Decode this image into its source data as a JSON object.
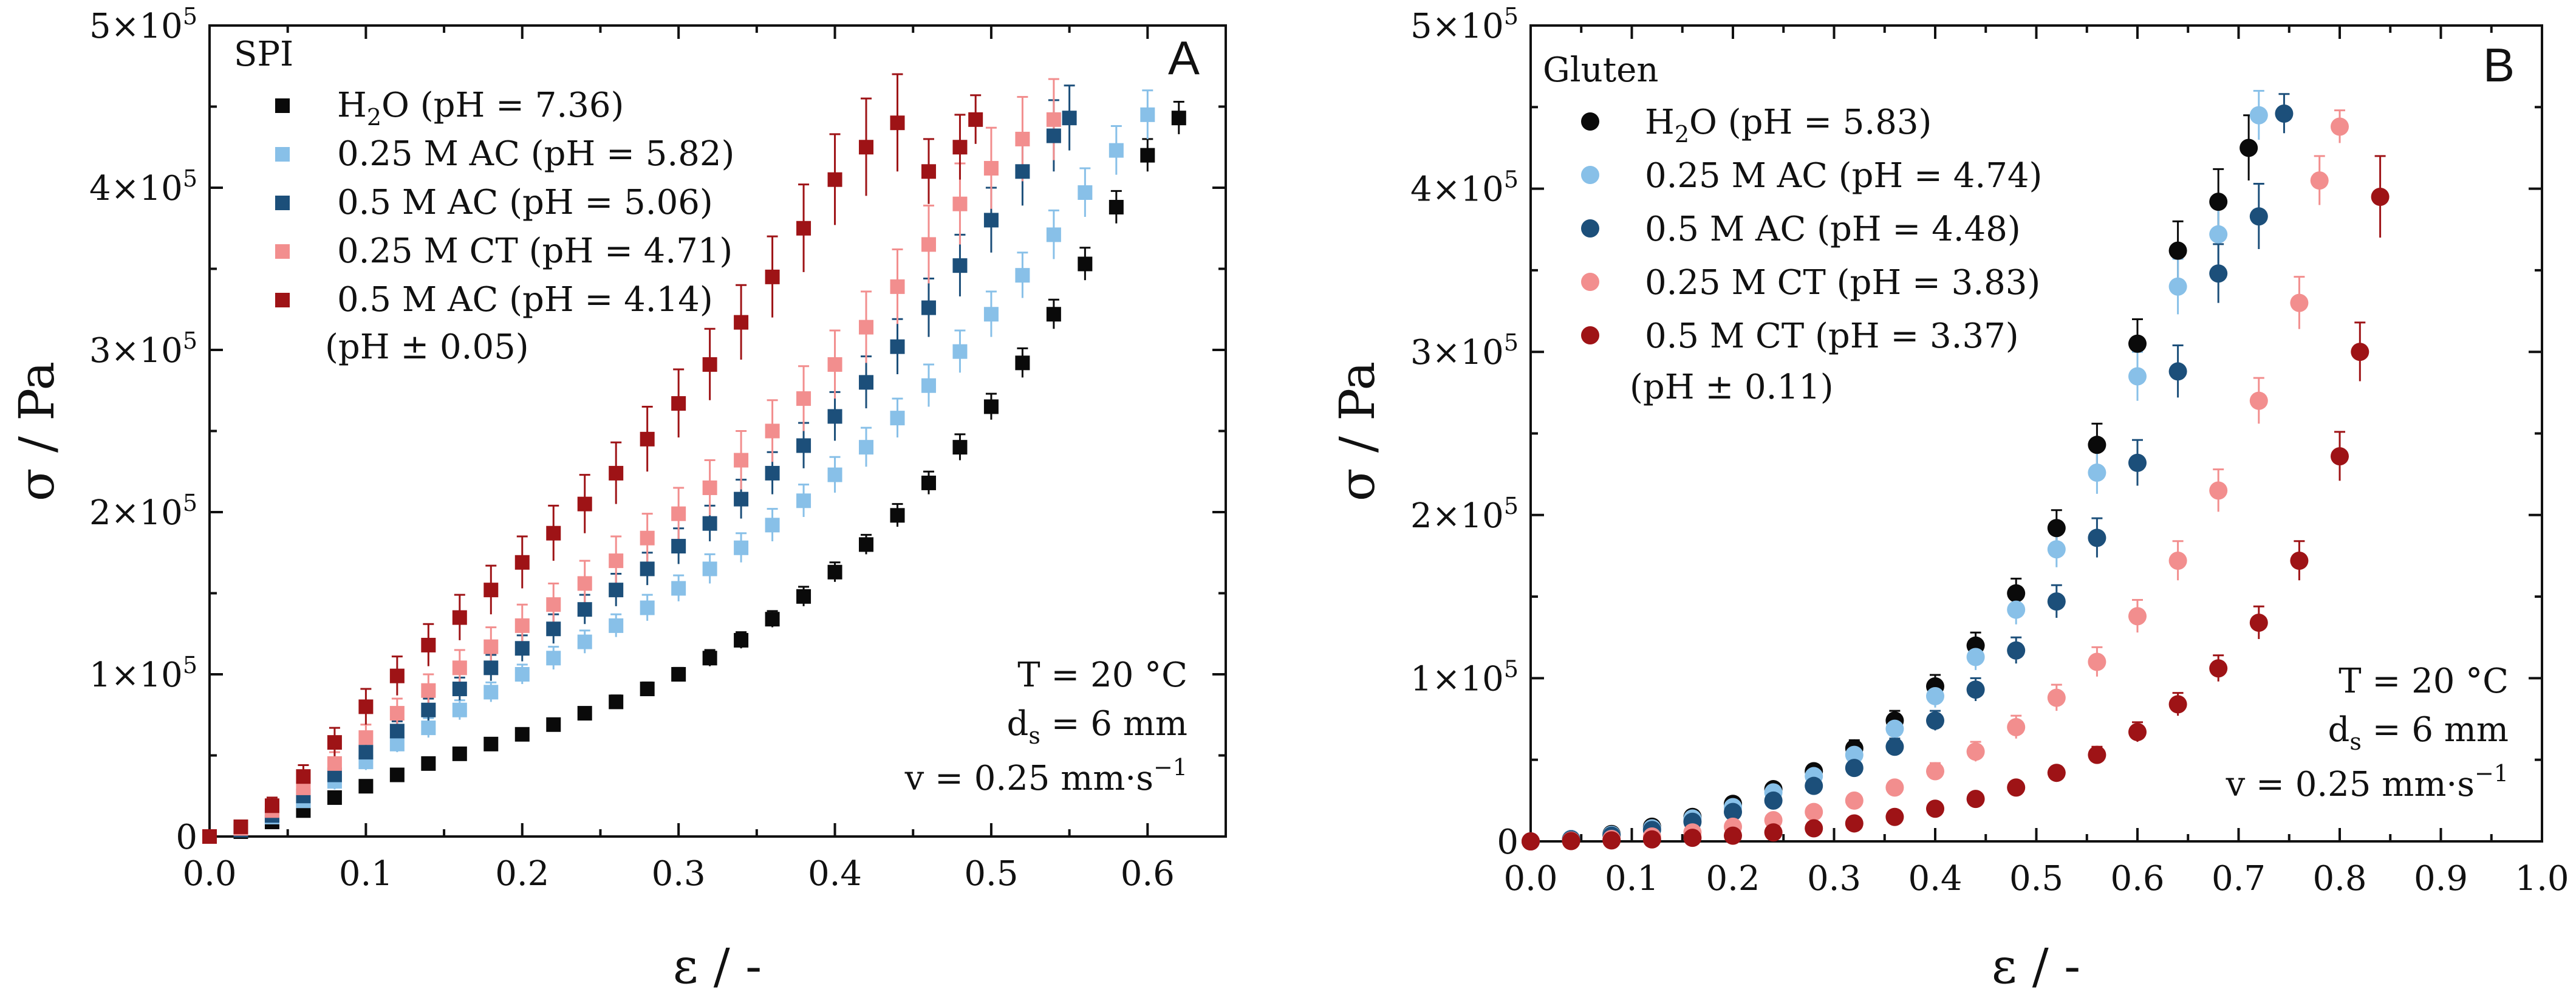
{
  "chart_data": [
    {
      "type": "scatter",
      "panel_label": "A",
      "title": "SPI",
      "xlabel": "ε / -",
      "ylabel": "σ / Pa",
      "xlim": [
        0,
        0.65
      ],
      "ylim": [
        0,
        500000
      ],
      "xticks": [
        "0.0",
        "0.1",
        "0.2",
        "0.3",
        "0.4",
        "0.5",
        "0.6"
      ],
      "xtick_values": [
        0,
        0.1,
        0.2,
        0.3,
        0.4,
        0.5,
        0.6
      ],
      "ytick_values": [
        0,
        100000,
        200000,
        300000,
        400000,
        500000
      ],
      "yticks": [
        {
          "coef": "0",
          "exp": ""
        },
        {
          "coef": "1×10",
          "exp": "5"
        },
        {
          "coef": "2×10",
          "exp": "5"
        },
        {
          "coef": "3×10",
          "exp": "5"
        },
        {
          "coef": "4×10",
          "exp": "5"
        },
        {
          "coef": "5×10",
          "exp": "5"
        }
      ],
      "marker": "square",
      "legend_note": "(pH ± 0.05)",
      "conditions": [
        "T = 20 °C",
        "d_s = 6 mm",
        "v  = 0.25 mm·s⁻¹"
      ],
      "conditions_parts": {
        "temperature": "T = 20 °C",
        "ds_main": "d",
        "ds_sub": "s",
        "ds_rest": " = 6 mm",
        "v_main": "v  = 0.25 mm·s",
        "v_sup": "−1"
      },
      "series": [
        {
          "name": "H₂O (pH = 7.36)",
          "label_main": "H",
          "label_sub": "2",
          "label_rest": "O (pH = 7.36)",
          "color": "#0a0a0a",
          "x": [
            0.0,
            0.02,
            0.04,
            0.06,
            0.08,
            0.1,
            0.12,
            0.14,
            0.16,
            0.18,
            0.2,
            0.22,
            0.24,
            0.26,
            0.28,
            0.3,
            0.32,
            0.34,
            0.36,
            0.38,
            0.4,
            0.42,
            0.44,
            0.46,
            0.48,
            0.5,
            0.52,
            0.54,
            0.56,
            0.58,
            0.6,
            0.62
          ],
          "y": [
            0,
            3000,
            9000,
            16000,
            24000,
            31000,
            38000,
            45000,
            51000,
            57000,
            63000,
            69000,
            76000,
            83000,
            91000,
            100000,
            110000,
            121000,
            134000,
            148000,
            163000,
            180000,
            198000,
            218000,
            240000,
            265000,
            292000,
            322000,
            353000,
            388000,
            420000,
            443000
          ],
          "err": [
            1000,
            1500,
            2500,
            3000,
            3000,
            3000,
            3000,
            3000,
            3000,
            3000,
            3000,
            3000,
            3500,
            4000,
            4000,
            4000,
            5000,
            5000,
            5000,
            6000,
            6000,
            6000,
            7000,
            7000,
            8000,
            8000,
            9000,
            9000,
            10000,
            10000,
            10000,
            10000
          ]
        },
        {
          "name": "0.25 M AC (pH = 5.82)",
          "color": "#88c0e8",
          "x": [
            0.0,
            0.02,
            0.04,
            0.06,
            0.08,
            0.1,
            0.12,
            0.14,
            0.16,
            0.18,
            0.2,
            0.22,
            0.24,
            0.26,
            0.28,
            0.3,
            0.32,
            0.34,
            0.36,
            0.38,
            0.4,
            0.42,
            0.44,
            0.46,
            0.48,
            0.5,
            0.52,
            0.54,
            0.56,
            0.58,
            0.6
          ],
          "y": [
            0,
            4000,
            12000,
            22000,
            34000,
            46000,
            57000,
            67000,
            78000,
            89000,
            100000,
            110000,
            120000,
            130000,
            141000,
            153000,
            165000,
            178000,
            192000,
            207000,
            223000,
            240000,
            258000,
            278000,
            299000,
            322000,
            346000,
            371000,
            397000,
            423000,
            445000
          ],
          "err": [
            1000,
            2000,
            3000,
            4000,
            5000,
            5000,
            5000,
            6000,
            6000,
            6000,
            6000,
            7000,
            7000,
            7000,
            8000,
            8000,
            9000,
            9000,
            10000,
            10000,
            11000,
            12000,
            12000,
            13000,
            13000,
            14000,
            14000,
            15000,
            15000,
            15000,
            15000
          ]
        },
        {
          "name": "0.5 M AC (pH = 5.06)",
          "color": "#1c4f7a",
          "x": [
            0.0,
            0.02,
            0.04,
            0.06,
            0.08,
            0.1,
            0.12,
            0.14,
            0.16,
            0.18,
            0.2,
            0.22,
            0.24,
            0.26,
            0.28,
            0.3,
            0.32,
            0.34,
            0.36,
            0.38,
            0.4,
            0.42,
            0.44,
            0.46,
            0.48,
            0.5,
            0.52,
            0.54,
            0.55
          ],
          "y": [
            0,
            4000,
            13000,
            25000,
            38000,
            52000,
            65000,
            78000,
            91000,
            104000,
            116000,
            128000,
            140000,
            152000,
            165000,
            179000,
            193000,
            208000,
            224000,
            241000,
            259000,
            280000,
            302000,
            326000,
            352000,
            380000,
            410000,
            432000,
            443000
          ],
          "err": [
            1000,
            2000,
            3000,
            4000,
            5000,
            6000,
            6000,
            7000,
            7000,
            8000,
            8000,
            9000,
            9000,
            10000,
            10000,
            11000,
            11000,
            12000,
            13000,
            14000,
            15000,
            16000,
            17000,
            18000,
            19000,
            20000,
            21000,
            22000,
            20000
          ]
        },
        {
          "name": "0.25 M CT (pH = 4.71)",
          "color": "#f28e8e",
          "x": [
            0.0,
            0.02,
            0.04,
            0.06,
            0.08,
            0.1,
            0.12,
            0.14,
            0.16,
            0.18,
            0.2,
            0.22,
            0.24,
            0.26,
            0.28,
            0.3,
            0.32,
            0.34,
            0.36,
            0.38,
            0.4,
            0.42,
            0.44,
            0.46,
            0.48,
            0.5,
            0.52,
            0.54
          ],
          "y": [
            0,
            5000,
            16000,
            30000,
            45000,
            61000,
            76000,
            90000,
            104000,
            117000,
            130000,
            143000,
            156000,
            170000,
            184000,
            199000,
            215000,
            232000,
            250000,
            270000,
            291000,
            314000,
            339000,
            365000,
            390000,
            412000,
            430000,
            442000
          ],
          "err": [
            1000,
            2000,
            4000,
            6000,
            7000,
            8000,
            9000,
            10000,
            11000,
            12000,
            13000,
            13000,
            14000,
            15000,
            15000,
            16000,
            17000,
            18000,
            19000,
            20000,
            21000,
            22000,
            23000,
            24000,
            25000,
            25000,
            26000,
            25000
          ]
        },
        {
          "name": "0.5 M AC (pH = 4.14)",
          "color": "#9e1316",
          "x": [
            0.0,
            0.02,
            0.04,
            0.06,
            0.08,
            0.1,
            0.12,
            0.14,
            0.16,
            0.18,
            0.2,
            0.22,
            0.24,
            0.26,
            0.28,
            0.3,
            0.32,
            0.34,
            0.36,
            0.38,
            0.4,
            0.42,
            0.44,
            0.46,
            0.48,
            0.49
          ],
          "y": [
            0,
            6000,
            19000,
            37000,
            58000,
            80000,
            99000,
            118000,
            135000,
            152000,
            169000,
            187000,
            205000,
            224000,
            245000,
            267000,
            291000,
            317000,
            345000,
            375000,
            405000,
            425000,
            440000,
            410000,
            425000,
            442000
          ],
          "err": [
            1000,
            3000,
            5000,
            7000,
            9000,
            11000,
            12000,
            13000,
            14000,
            15000,
            16000,
            17000,
            18000,
            19000,
            20000,
            21000,
            22000,
            23000,
            25000,
            27000,
            28000,
            30000,
            30000,
            20000,
            20000,
            15000
          ]
        }
      ]
    },
    {
      "type": "scatter",
      "panel_label": "B",
      "title": "Gluten",
      "xlabel": "ε / -",
      "ylabel": "σ / Pa",
      "xlim": [
        0,
        1.0
      ],
      "ylim": [
        0,
        500000
      ],
      "xticks": [
        "0.0",
        "0.1",
        "0.2",
        "0.3",
        "0.4",
        "0.5",
        "0.6",
        "0.7",
        "0.8",
        "0.9",
        "1.0"
      ],
      "xtick_values": [
        0,
        0.1,
        0.2,
        0.3,
        0.4,
        0.5,
        0.6,
        0.7,
        0.8,
        0.9,
        1.0
      ],
      "ytick_values": [
        0,
        100000,
        200000,
        300000,
        400000,
        500000
      ],
      "yticks": [
        {
          "coef": "0",
          "exp": ""
        },
        {
          "coef": "1×10",
          "exp": "5"
        },
        {
          "coef": "2×10",
          "exp": "5"
        },
        {
          "coef": "3×10",
          "exp": "5"
        },
        {
          "coef": "4×10",
          "exp": "5"
        },
        {
          "coef": "5×10",
          "exp": "5"
        }
      ],
      "marker": "circle",
      "legend_note": "(pH ± 0.11)",
      "conditions": [
        "T = 20 °C",
        "d_s = 6 mm",
        "v  = 0.25 mm·s⁻¹"
      ],
      "conditions_parts": {
        "temperature": "T = 20 °C",
        "ds_main": "d",
        "ds_sub": "s",
        "ds_rest": " = 6 mm",
        "v_main": "v  = 0.25 mm·s",
        "v_sup": "−1"
      },
      "series": [
        {
          "name": "H₂O (pH = 5.83)",
          "label_main": "H",
          "label_sub": "2",
          "label_rest": "O (pH = 5.83)",
          "color": "#0a0a0a",
          "x": [
            0.0,
            0.04,
            0.08,
            0.12,
            0.16,
            0.2,
            0.24,
            0.28,
            0.32,
            0.36,
            0.4,
            0.44,
            0.48,
            0.52,
            0.56,
            0.6,
            0.64,
            0.68,
            0.71
          ],
          "y": [
            0,
            1500,
            4500,
            9000,
            15000,
            23000,
            32000,
            43000,
            57000,
            74000,
            95000,
            120000,
            152000,
            192000,
            243000,
            305000,
            362000,
            392000,
            425000
          ],
          "err": [
            500,
            500,
            1000,
            1500,
            2000,
            2500,
            3000,
            4000,
            5000,
            6000,
            7000,
            8000,
            9000,
            11000,
            13000,
            15000,
            18000,
            20000,
            20000
          ]
        },
        {
          "name": "0.25 M AC (pH = 4.74)",
          "color": "#88c0e8",
          "x": [
            0.0,
            0.04,
            0.08,
            0.12,
            0.16,
            0.2,
            0.24,
            0.28,
            0.32,
            0.36,
            0.4,
            0.44,
            0.48,
            0.52,
            0.56,
            0.6,
            0.64,
            0.68,
            0.72
          ],
          "y": [
            0,
            1500,
            4000,
            8000,
            14000,
            21000,
            30000,
            40000,
            53000,
            69000,
            89000,
            113000,
            142000,
            179000,
            226000,
            285000,
            340000,
            372000,
            445000
          ],
          "err": [
            500,
            500,
            1000,
            1500,
            2000,
            2500,
            3000,
            4000,
            5000,
            6000,
            7000,
            8000,
            9000,
            11000,
            13000,
            15000,
            17000,
            18000,
            15000
          ]
        },
        {
          "name": "0.5 M AC (pH = 4.48)",
          "color": "#1c4f7a",
          "x": [
            0.0,
            0.04,
            0.08,
            0.12,
            0.16,
            0.2,
            0.24,
            0.28,
            0.32,
            0.36,
            0.4,
            0.44,
            0.48,
            0.52,
            0.56,
            0.6,
            0.64,
            0.68,
            0.72,
            0.745
          ],
          "y": [
            0,
            1200,
            3500,
            7000,
            12000,
            18000,
            25000,
            34000,
            45000,
            58000,
            74000,
            93000,
            117000,
            147000,
            186000,
            232000,
            288000,
            348000,
            383000,
            446000
          ],
          "err": [
            500,
            500,
            1000,
            1500,
            2000,
            2500,
            3000,
            3500,
            4000,
            5000,
            6000,
            7000,
            8000,
            10000,
            12000,
            14000,
            16000,
            18000,
            20000,
            12000
          ]
        },
        {
          "name": "0.25 M CT (pH = 3.83)",
          "color": "#f28e8e",
          "x": [
            0.0,
            0.04,
            0.08,
            0.12,
            0.16,
            0.2,
            0.24,
            0.28,
            0.32,
            0.36,
            0.4,
            0.44,
            0.48,
            0.52,
            0.56,
            0.6,
            0.64,
            0.68,
            0.72,
            0.76,
            0.78,
            0.8
          ],
          "y": [
            0,
            500,
            1500,
            3000,
            5500,
            9000,
            13000,
            18000,
            25000,
            33000,
            43000,
            55000,
            70000,
            88000,
            110000,
            138000,
            172000,
            215000,
            270000,
            330000,
            405000,
            438000
          ],
          "err": [
            300,
            300,
            500,
            800,
            1000,
            1500,
            2000,
            2500,
            3000,
            4000,
            5000,
            6000,
            7000,
            8000,
            9000,
            10000,
            12000,
            13000,
            14000,
            16000,
            15000,
            10000
          ]
        },
        {
          "name": "0.5 M CT (pH = 3.37)",
          "color": "#9e1316",
          "x": [
            0.0,
            0.04,
            0.08,
            0.12,
            0.16,
            0.2,
            0.24,
            0.28,
            0.32,
            0.36,
            0.4,
            0.44,
            0.48,
            0.52,
            0.56,
            0.6,
            0.64,
            0.68,
            0.72,
            0.76,
            0.8,
            0.82,
            0.84
          ],
          "y": [
            0,
            200,
            600,
            1200,
            2200,
            3500,
            5500,
            8000,
            11000,
            15000,
            20000,
            26000,
            33000,
            42000,
            53000,
            67000,
            84000,
            106000,
            134000,
            172000,
            236000,
            300000,
            395000
          ],
          "err": [
            200,
            200,
            300,
            400,
            500,
            700,
            900,
            1200,
            1500,
            2000,
            2500,
            3000,
            3500,
            4000,
            5000,
            6000,
            7000,
            8000,
            10000,
            12000,
            15000,
            18000,
            25000
          ]
        }
      ]
    }
  ]
}
